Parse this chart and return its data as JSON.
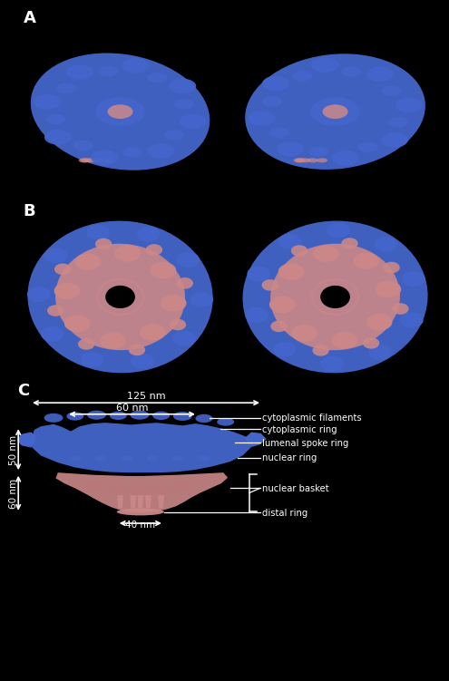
{
  "background_color": "#000000",
  "blue_color": "#4466cc",
  "pink_color": "#cc8888",
  "white_color": "#ffffff",
  "label_A": "A",
  "label_B": "B",
  "label_C": "C",
  "annotations_C": [
    "cytoplasmic filaments",
    "cytoplasmic ring",
    "lumenal spoke ring",
    "nuclear ring",
    "nuclear basket",
    "distal ring"
  ],
  "dim_125nm": "125 nm",
  "dim_60nm_top": "60 nm",
  "dim_60nm_bot": "60 nm",
  "dim_50nm": "50 nm",
  "dim_40nm": "40 nm"
}
